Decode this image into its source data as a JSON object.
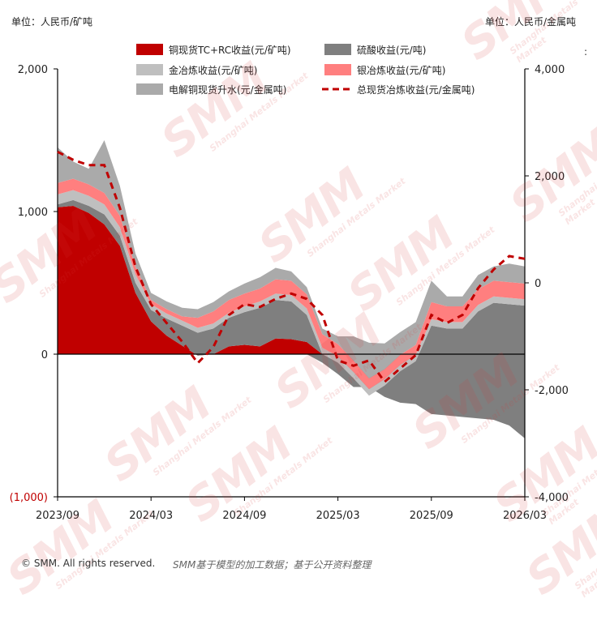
{
  "units": {
    "left": "单位：人民币/矿吨",
    "right": "单位：人民币/金属吨",
    "stray_mark": ":"
  },
  "footer": {
    "copyright": "© SMM. All rights reserved.",
    "note": "SMM基于模型的加工数据；基于公开资料整理"
  },
  "watermark": {
    "brand": "SMM",
    "tagline": "Shanghai Metals Market"
  },
  "chart_data": {
    "type": "area",
    "x": [
      "2023/09",
      "2023/10",
      "2023/11",
      "2023/12",
      "2024/01",
      "2024/02",
      "2024/03",
      "2024/04",
      "2024/05",
      "2024/06",
      "2024/07",
      "2024/08",
      "2024/09",
      "2024/10",
      "2024/11",
      "2024/12",
      "2025/01",
      "2025/02",
      "2025/03",
      "2025/04",
      "2025/05",
      "2025/06",
      "2025/07",
      "2025/08",
      "2025/09",
      "2025/10",
      "2025/11",
      "2025/12",
      "2026/01",
      "2026/02",
      "2026/03"
    ],
    "x_tick_labels": [
      "2023/09",
      "2024/03",
      "2024/09",
      "2025/03",
      "2025/09",
      "2026/03"
    ],
    "y_left": {
      "ylim": [
        -1000,
        2000
      ],
      "ticks": [
        -1000,
        0,
        1000,
        2000
      ],
      "tick_labels": [
        "(1,000)",
        "0",
        "1,000",
        "2,000"
      ]
    },
    "y_right": {
      "ylim": [
        -4000,
        4000
      ],
      "ticks": [
        -4000,
        -2000,
        0,
        2000,
        4000
      ],
      "tick_labels": [
        "-4,000",
        "-2,000",
        "0",
        "2,000",
        "4,000"
      ]
    },
    "grid": false,
    "legend_position": "top",
    "series": [
      {
        "name": "铜现货TC+RC收益(元/矿吨)",
        "kind": "area",
        "axis": "left",
        "color": "#c00000",
        "values": [
          1030,
          1040,
          990,
          910,
          760,
          430,
          230,
          130,
          60,
          -10,
          0,
          55,
          65,
          55,
          110,
          105,
          85,
          0,
          0,
          0,
          0,
          0,
          0,
          0,
          0,
          0,
          0,
          0,
          0,
          0,
          0
        ]
      },
      {
        "name": "硫酸收益(元/吨)",
        "kind": "area",
        "axis": "left",
        "color": "#7f7f7f",
        "values": [
          20,
          40,
          50,
          70,
          70,
          70,
          80,
          120,
          140,
          160,
          180,
          200,
          230,
          270,
          270,
          265,
          190,
          0,
          -60,
          -170,
          -290,
          -220,
          -120,
          -50,
          200,
          180,
          180,
          300,
          360,
          350,
          340
        ]
      },
      {
        "name": "硫酸收益(元/吨)",
        "kind": "area_negative",
        "axis": "left",
        "color": "#7f7f7f",
        "values": [
          0,
          0,
          0,
          0,
          0,
          0,
          0,
          0,
          0,
          0,
          0,
          0,
          0,
          0,
          0,
          0,
          0,
          -60,
          -140,
          -230,
          -230,
          -300,
          -340,
          -350,
          -420,
          -430,
          -440,
          -450,
          -460,
          -500,
          -590
        ]
      },
      {
        "name": "金冶炼收益(元/矿吨)",
        "kind": "area",
        "axis": "left",
        "color": "#bfbfbf",
        "values": [
          70,
          70,
          70,
          70,
          60,
          60,
          40,
          35,
          35,
          35,
          35,
          35,
          40,
          45,
          45,
          45,
          45,
          45,
          45,
          45,
          45,
          45,
          45,
          45,
          45,
          45,
          45,
          45,
          45,
          45,
          45
        ]
      },
      {
        "name": "银冶炼收益(元/矿吨)",
        "kind": "area",
        "axis": "left",
        "color": "#ff7f7f",
        "values": [
          80,
          80,
          80,
          80,
          80,
          55,
          30,
          30,
          30,
          70,
          85,
          90,
          90,
          90,
          100,
          100,
          100,
          95,
          85,
          80,
          75,
          70,
          70,
          70,
          120,
          110,
          110,
          110,
          110,
          110,
          110
        ]
      },
      {
        "name": "电解铜现货升水(元/金属吨)",
        "kind": "area",
        "axis": "left",
        "color": "#aaaaaa",
        "values": [
          250,
          120,
          110,
          370,
          210,
          90,
          50,
          55,
          60,
          60,
          65,
          60,
          70,
          80,
          80,
          65,
          50,
          40,
          55,
          170,
          250,
          180,
          160,
          160,
          150,
          70,
          70,
          100,
          100,
          130,
          120
        ]
      },
      {
        "name": "总现货冶炼收益(元/金属吨)",
        "kind": "dashed_line",
        "axis": "right",
        "color": "#c00000",
        "values": [
          2450,
          2300,
          2200,
          2200,
          1400,
          300,
          -400,
          -750,
          -1100,
          -1500,
          -1200,
          -600,
          -400,
          -450,
          -300,
          -200,
          -300,
          -600,
          -1450,
          -1550,
          -1450,
          -1850,
          -1600,
          -1350,
          -600,
          -750,
          -600,
          -100,
          250,
          500,
          450
        ]
      }
    ]
  }
}
